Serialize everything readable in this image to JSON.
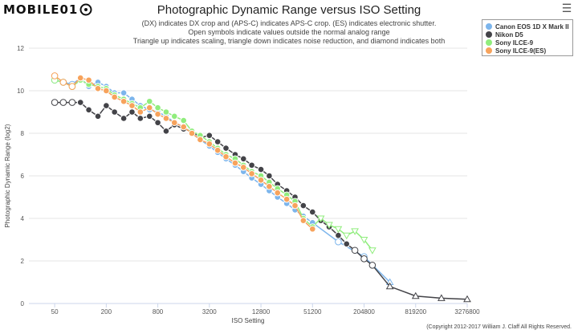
{
  "header": {
    "logo_text": "MOBILE01",
    "title": "Photographic Dynamic Range versus ISO Setting",
    "subtitle_lines": [
      "(DX) indicates DX crop and (APS-C) indicates APS-C crop. (ES) indicates electronic shutter.",
      "Open symbols indicate values outside the normal analog range",
      "Triangle up indicates scaling, triangle down indicates noise reduction, and diamond indicates both"
    ]
  },
  "menu_icon": "hamburger-icon",
  "copyright": "(Copyright 2012-2017 William J. Claff All Rights Reserved.",
  "colors": {
    "canon": "#7cb5ec",
    "nikon": "#434348",
    "sony9": "#90ed7d",
    "sony9es": "#f7a35c",
    "grid": "#e6e6e6"
  },
  "chart_data": {
    "type": "line",
    "title": "Photographic Dynamic Range versus ISO Setting",
    "xlabel": "ISO Setting",
    "ylabel": "Photographic Dynamic Range (log2)",
    "x_scale": "log2",
    "x_ticks": [
      50,
      200,
      800,
      3200,
      12800,
      51200,
      204800,
      819200,
      3276800
    ],
    "y_ticks": [
      0,
      2,
      4,
      6,
      8,
      10,
      12
    ],
    "ylim": [
      0,
      12
    ],
    "xlim": [
      25,
      3276800
    ],
    "grid": true,
    "legend_position": "top-right",
    "series": [
      {
        "name": "Canon EOS 1D X Mark II",
        "color": "#7cb5ec",
        "points": [
          {
            "x": 50,
            "y": 10.5,
            "open": true
          },
          {
            "x": 63,
            "y": 10.4,
            "open": true
          },
          {
            "x": 80,
            "y": 10.3,
            "open": true
          },
          {
            "x": 100,
            "y": 10.6
          },
          {
            "x": 125,
            "y": 10.2
          },
          {
            "x": 160,
            "y": 10.4
          },
          {
            "x": 200,
            "y": 10.2
          },
          {
            "x": 250,
            "y": 9.9
          },
          {
            "x": 320,
            "y": 9.9
          },
          {
            "x": 400,
            "y": 9.6
          },
          {
            "x": 500,
            "y": 9.3
          },
          {
            "x": 640,
            "y": 9.1
          },
          {
            "x": 800,
            "y": 9.0
          },
          {
            "x": 1000,
            "y": 8.8
          },
          {
            "x": 1250,
            "y": 8.5
          },
          {
            "x": 1600,
            "y": 8.3
          },
          {
            "x": 2000,
            "y": 8.0
          },
          {
            "x": 2500,
            "y": 7.7
          },
          {
            "x": 3200,
            "y": 7.4
          },
          {
            "x": 4000,
            "y": 7.1
          },
          {
            "x": 5000,
            "y": 6.8
          },
          {
            "x": 6400,
            "y": 6.5
          },
          {
            "x": 8000,
            "y": 6.2
          },
          {
            "x": 10000,
            "y": 5.9
          },
          {
            "x": 12800,
            "y": 5.6
          },
          {
            "x": 16000,
            "y": 5.3
          },
          {
            "x": 20000,
            "y": 5.0
          },
          {
            "x": 25600,
            "y": 4.7
          },
          {
            "x": 32000,
            "y": 4.4
          },
          {
            "x": 40000,
            "y": 4.1
          },
          {
            "x": 51200,
            "y": 3.8
          },
          {
            "x": 102400,
            "y": 2.9,
            "open": true
          },
          {
            "x": 204800,
            "y": 2.2,
            "open": true
          },
          {
            "x": 409600,
            "y": 1.0,
            "open": true,
            "marker": "triangle-up"
          }
        ]
      },
      {
        "name": "Nikon D5",
        "color": "#434348",
        "points": [
          {
            "x": 50,
            "y": 9.45,
            "open": true
          },
          {
            "x": 63,
            "y": 9.45,
            "open": true
          },
          {
            "x": 80,
            "y": 9.45,
            "open": true
          },
          {
            "x": 100,
            "y": 9.45
          },
          {
            "x": 125,
            "y": 9.1
          },
          {
            "x": 160,
            "y": 8.8
          },
          {
            "x": 200,
            "y": 9.3
          },
          {
            "x": 250,
            "y": 9.0
          },
          {
            "x": 320,
            "y": 8.7
          },
          {
            "x": 400,
            "y": 9.0
          },
          {
            "x": 500,
            "y": 8.7
          },
          {
            "x": 640,
            "y": 8.8
          },
          {
            "x": 800,
            "y": 8.5
          },
          {
            "x": 1000,
            "y": 8.1
          },
          {
            "x": 1250,
            "y": 8.4
          },
          {
            "x": 1600,
            "y": 8.2
          },
          {
            "x": 2000,
            "y": 8.1
          },
          {
            "x": 2500,
            "y": 7.8
          },
          {
            "x": 3200,
            "y": 7.9
          },
          {
            "x": 4000,
            "y": 7.6
          },
          {
            "x": 5000,
            "y": 7.3
          },
          {
            "x": 6400,
            "y": 7.0
          },
          {
            "x": 8000,
            "y": 6.8
          },
          {
            "x": 10000,
            "y": 6.5
          },
          {
            "x": 12800,
            "y": 6.3
          },
          {
            "x": 16000,
            "y": 6.0
          },
          {
            "x": 20000,
            "y": 5.6
          },
          {
            "x": 25600,
            "y": 5.3
          },
          {
            "x": 32000,
            "y": 5.0
          },
          {
            "x": 40000,
            "y": 4.6
          },
          {
            "x": 51200,
            "y": 4.3
          },
          {
            "x": 64000,
            "y": 3.9
          },
          {
            "x": 80000,
            "y": 3.6
          },
          {
            "x": 102400,
            "y": 3.2
          },
          {
            "x": 128000,
            "y": 2.8
          },
          {
            "x": 160000,
            "y": 2.5,
            "open": true
          },
          {
            "x": 204800,
            "y": 2.1,
            "open": true
          },
          {
            "x": 256000,
            "y": 1.8,
            "open": true
          },
          {
            "x": 409600,
            "y": 0.8,
            "open": true,
            "marker": "triangle-up"
          },
          {
            "x": 819200,
            "y": 0.35,
            "open": true,
            "marker": "triangle-up"
          },
          {
            "x": 1638400,
            "y": 0.25,
            "open": true,
            "marker": "triangle-up"
          },
          {
            "x": 3276800,
            "y": 0.2,
            "open": true,
            "marker": "triangle-up"
          }
        ]
      },
      {
        "name": "Sony ILCE-9",
        "color": "#90ed7d",
        "points": [
          {
            "x": 50,
            "y": 10.5,
            "open": true
          },
          {
            "x": 63,
            "y": 10.4,
            "open": true
          },
          {
            "x": 80,
            "y": 10.2,
            "open": true
          },
          {
            "x": 100,
            "y": 10.5
          },
          {
            "x": 125,
            "y": 10.3
          },
          {
            "x": 160,
            "y": 10.2
          },
          {
            "x": 200,
            "y": 10.1
          },
          {
            "x": 250,
            "y": 9.8
          },
          {
            "x": 320,
            "y": 9.6
          },
          {
            "x": 400,
            "y": 9.4
          },
          {
            "x": 500,
            "y": 9.2
          },
          {
            "x": 640,
            "y": 9.5
          },
          {
            "x": 800,
            "y": 9.2
          },
          {
            "x": 1000,
            "y": 9.0
          },
          {
            "x": 1250,
            "y": 8.8
          },
          {
            "x": 1600,
            "y": 8.6
          },
          {
            "x": 2000,
            "y": 8.1
          },
          {
            "x": 2500,
            "y": 7.9
          },
          {
            "x": 3200,
            "y": 7.6
          },
          {
            "x": 4000,
            "y": 7.3
          },
          {
            "x": 5000,
            "y": 7.0
          },
          {
            "x": 6400,
            "y": 6.8
          },
          {
            "x": 8000,
            "y": 6.5
          },
          {
            "x": 10000,
            "y": 6.2
          },
          {
            "x": 12800,
            "y": 6.0
          },
          {
            "x": 16000,
            "y": 5.7
          },
          {
            "x": 20000,
            "y": 5.4
          },
          {
            "x": 25600,
            "y": 5.1
          },
          {
            "x": 32000,
            "y": 4.8
          },
          {
            "x": 40000,
            "y": 4.0
          },
          {
            "x": 51200,
            "y": 3.6
          },
          {
            "x": 64000,
            "y": 4.0,
            "open": true,
            "marker": "triangle-down"
          },
          {
            "x": 80000,
            "y": 3.7,
            "open": true,
            "marker": "triangle-down"
          },
          {
            "x": 102400,
            "y": 3.5,
            "open": true,
            "marker": "triangle-down"
          },
          {
            "x": 128000,
            "y": 3.2,
            "open": true,
            "marker": "triangle-down"
          },
          {
            "x": 160000,
            "y": 3.4,
            "open": true,
            "marker": "triangle-down"
          },
          {
            "x": 204800,
            "y": 3.0,
            "open": true,
            "marker": "triangle-down"
          },
          {
            "x": 256000,
            "y": 2.5,
            "open": true,
            "marker": "triangle-down"
          }
        ]
      },
      {
        "name": "Sony ILCE-9(ES)",
        "color": "#f7a35c",
        "points": [
          {
            "x": 50,
            "y": 10.7,
            "open": true
          },
          {
            "x": 63,
            "y": 10.4,
            "open": true
          },
          {
            "x": 80,
            "y": 10.2,
            "open": true
          },
          {
            "x": 100,
            "y": 10.6
          },
          {
            "x": 125,
            "y": 10.5
          },
          {
            "x": 160,
            "y": 10.1
          },
          {
            "x": 200,
            "y": 10.0
          },
          {
            "x": 250,
            "y": 9.7
          },
          {
            "x": 320,
            "y": 9.5
          },
          {
            "x": 400,
            "y": 9.3
          },
          {
            "x": 500,
            "y": 9.0
          },
          {
            "x": 640,
            "y": 9.2
          },
          {
            "x": 800,
            "y": 8.9
          },
          {
            "x": 1000,
            "y": 8.7
          },
          {
            "x": 1250,
            "y": 8.5
          },
          {
            "x": 1600,
            "y": 8.3
          },
          {
            "x": 2000,
            "y": 8.0
          },
          {
            "x": 2500,
            "y": 7.7
          },
          {
            "x": 3200,
            "y": 7.5
          },
          {
            "x": 4000,
            "y": 7.2
          },
          {
            "x": 5000,
            "y": 6.9
          },
          {
            "x": 6400,
            "y": 6.6
          },
          {
            "x": 8000,
            "y": 6.4
          },
          {
            "x": 10000,
            "y": 6.1
          },
          {
            "x": 12800,
            "y": 5.8
          },
          {
            "x": 16000,
            "y": 5.5
          },
          {
            "x": 20000,
            "y": 5.2
          },
          {
            "x": 25600,
            "y": 4.9
          },
          {
            "x": 32000,
            "y": 4.6
          },
          {
            "x": 40000,
            "y": 3.9
          },
          {
            "x": 51200,
            "y": 3.5
          }
        ]
      }
    ]
  }
}
